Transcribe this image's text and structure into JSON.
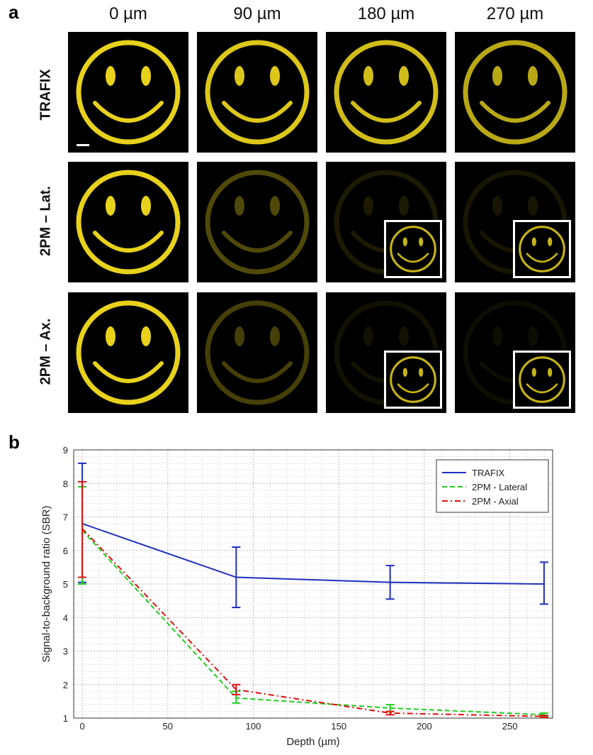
{
  "panel_a": {
    "letter": "a",
    "columns": [
      "0 µm",
      "90 µm",
      "180 µm",
      "270 µm"
    ],
    "rows": [
      {
        "label": "TRAFIX",
        "brightness": [
          1.0,
          0.95,
          0.9,
          0.8
        ],
        "insets": [
          false,
          false,
          false,
          false
        ]
      },
      {
        "label": "2PM – Lat.",
        "brightness": [
          1.0,
          0.35,
          0.12,
          0.1
        ],
        "insets": [
          false,
          false,
          true,
          true
        ]
      },
      {
        "label": "2PM – Ax.",
        "brightness": [
          1.0,
          0.3,
          0.08,
          0.06
        ],
        "insets": [
          false,
          false,
          true,
          true
        ]
      }
    ],
    "smiley_color": "#e8d21c"
  },
  "panel_b": {
    "letter": "b",
    "chart_data": {
      "type": "line",
      "xlabel": "Depth (µm)",
      "ylabel": "Signal-to-background ratio (SBR)",
      "xlim": [
        -5,
        275
      ],
      "ylim": [
        1,
        9
      ],
      "x_ticks": [
        0,
        50,
        100,
        150,
        200,
        250
      ],
      "y_ticks": [
        1,
        2,
        3,
        4,
        5,
        6,
        7,
        8,
        9
      ],
      "grid": true,
      "legend_position": "top-right",
      "series": [
        {
          "name": "TRAFIX",
          "color": "#1f2fbf",
          "dash": "solid",
          "x": [
            0,
            90,
            180,
            270
          ],
          "y": [
            6.8,
            5.2,
            5.05,
            5.0
          ],
          "err_low": [
            5.05,
            4.3,
            4.55,
            4.4
          ],
          "err_high": [
            8.6,
            6.1,
            5.55,
            5.65
          ]
        },
        {
          "name": "2PM - Lateral",
          "color": "#22cc22",
          "dash": "dashed",
          "x": [
            0,
            90,
            180,
            270
          ],
          "y": [
            6.6,
            1.6,
            1.3,
            1.1
          ],
          "err_low": [
            5.0,
            1.45,
            1.2,
            1.05
          ],
          "err_high": [
            7.9,
            1.8,
            1.4,
            1.15
          ]
        },
        {
          "name": "2PM - Axial",
          "color": "#dd1111",
          "dash": "dashdot",
          "x": [
            0,
            90,
            180,
            270
          ],
          "y": [
            6.65,
            1.85,
            1.15,
            1.05
          ],
          "err_low": [
            5.2,
            1.7,
            1.1,
            1.02
          ],
          "err_high": [
            8.05,
            2.0,
            1.2,
            1.08
          ]
        }
      ]
    }
  }
}
